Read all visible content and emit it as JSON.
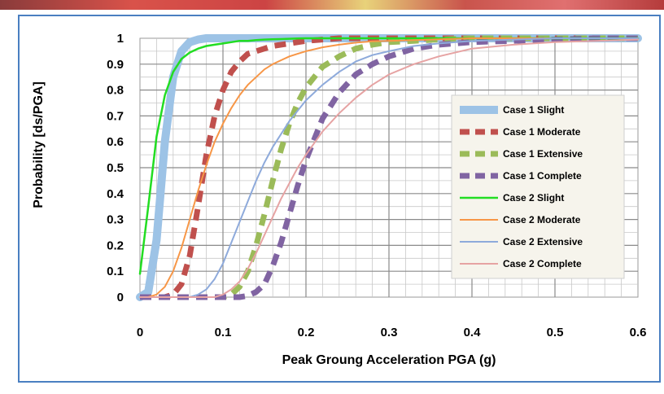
{
  "chart_data": {
    "type": "line",
    "title": "",
    "xlabel": "Peak Groung Acceleration PGA (g)",
    "ylabel": "Probability  [ds/PGA]",
    "xlim": [
      0,
      0.6
    ],
    "ylim": [
      0,
      1
    ],
    "x_ticks": [
      "0",
      "0.1",
      "0.2",
      "0.3",
      "0.4",
      "0.5",
      "0.6"
    ],
    "y_ticks": [
      "0",
      "0.1",
      "0.2",
      "0.3",
      "0.4",
      "0.5",
      "0.6",
      "0.7",
      "0.8",
      "0.9",
      "1"
    ],
    "grid": true,
    "legend_position": "right",
    "x": [
      0,
      0.01,
      0.02,
      0.03,
      0.04,
      0.05,
      0.06,
      0.07,
      0.08,
      0.09,
      0.1,
      0.11,
      0.12,
      0.13,
      0.14,
      0.15,
      0.16,
      0.17,
      0.18,
      0.19,
      0.2,
      0.22,
      0.24,
      0.26,
      0.28,
      0.3,
      0.33,
      0.36,
      0.4,
      0.45,
      0.5,
      0.55,
      0.6
    ],
    "series": [
      {
        "name": "Case 1 Slight",
        "color": "#9dc3e6",
        "width": 10,
        "dash": "none",
        "values": [
          0,
          0.02,
          0.22,
          0.6,
          0.85,
          0.95,
          0.985,
          0.995,
          1,
          1,
          1,
          1,
          1,
          1,
          1,
          1,
          1,
          1,
          1,
          1,
          1,
          1,
          1,
          1,
          1,
          1,
          1,
          1,
          1,
          1,
          1,
          1,
          1
        ]
      },
      {
        "name": "Case 1 Moderate",
        "color": "#c0504d",
        "width": 7,
        "dash": "14,9",
        "values": [
          0,
          0,
          0,
          0,
          0.01,
          0.05,
          0.16,
          0.35,
          0.55,
          0.7,
          0.8,
          0.87,
          0.91,
          0.94,
          0.95,
          0.96,
          0.97,
          0.975,
          0.98,
          0.985,
          0.99,
          0.995,
          1,
          1,
          1,
          1,
          1,
          1,
          1,
          1,
          1,
          1,
          1
        ]
      },
      {
        "name": "Case 1 Extensive",
        "color": "#9bbb59",
        "width": 7,
        "dash": "14,9",
        "values": [
          0,
          0,
          0,
          0,
          0,
          0,
          0,
          0,
          0,
          0,
          0,
          0.01,
          0.04,
          0.1,
          0.2,
          0.32,
          0.45,
          0.57,
          0.67,
          0.75,
          0.81,
          0.89,
          0.93,
          0.96,
          0.975,
          0.985,
          0.99,
          0.995,
          1,
          1,
          1,
          1,
          1
        ]
      },
      {
        "name": "Case 1 Complete",
        "color": "#8064a2",
        "width": 7,
        "dash": "14,9",
        "values": [
          0,
          0,
          0,
          0,
          0,
          0,
          0,
          0,
          0,
          0,
          0,
          0,
          0,
          0.005,
          0.02,
          0.05,
          0.12,
          0.21,
          0.32,
          0.43,
          0.53,
          0.69,
          0.79,
          0.86,
          0.9,
          0.93,
          0.96,
          0.975,
          0.985,
          0.99,
          0.995,
          1,
          1
        ]
      },
      {
        "name": "Case 2 Slight",
        "color": "#22dd22",
        "width": 2.5,
        "dash": "none",
        "values": [
          0.09,
          0.35,
          0.62,
          0.78,
          0.87,
          0.92,
          0.945,
          0.96,
          0.97,
          0.975,
          0.98,
          0.985,
          0.99,
          0.99,
          0.993,
          0.995,
          0.996,
          0.997,
          0.998,
          0.999,
          1,
          1,
          1,
          1,
          1,
          1,
          1,
          1,
          1,
          1,
          1,
          1,
          1
        ]
      },
      {
        "name": "Case 2 Moderate",
        "color": "#f79646",
        "width": 2,
        "dash": "none",
        "values": [
          0,
          0,
          0.01,
          0.04,
          0.1,
          0.19,
          0.3,
          0.41,
          0.51,
          0.6,
          0.67,
          0.73,
          0.78,
          0.82,
          0.85,
          0.88,
          0.9,
          0.915,
          0.93,
          0.94,
          0.95,
          0.965,
          0.975,
          0.983,
          0.988,
          0.99,
          0.993,
          0.996,
          1,
          1,
          1,
          1,
          1
        ]
      },
      {
        "name": "Case 2 Extensive",
        "color": "#8eaadb",
        "width": 2,
        "dash": "none",
        "values": [
          0,
          0,
          0,
          0,
          0,
          0,
          0,
          0.01,
          0.03,
          0.07,
          0.13,
          0.21,
          0.29,
          0.37,
          0.45,
          0.52,
          0.58,
          0.63,
          0.68,
          0.72,
          0.76,
          0.82,
          0.87,
          0.91,
          0.935,
          0.95,
          0.97,
          0.98,
          0.99,
          0.995,
          1,
          1,
          1
        ]
      },
      {
        "name": "Case 2 Complete",
        "color": "#e6a3a3",
        "width": 2,
        "dash": "none",
        "values": [
          0,
          0,
          0,
          0,
          0,
          0,
          0,
          0,
          0,
          0,
          0.01,
          0.03,
          0.06,
          0.11,
          0.17,
          0.24,
          0.31,
          0.38,
          0.44,
          0.5,
          0.55,
          0.64,
          0.71,
          0.77,
          0.82,
          0.86,
          0.9,
          0.93,
          0.96,
          0.975,
          0.985,
          0.99,
          0.995
        ]
      }
    ]
  }
}
